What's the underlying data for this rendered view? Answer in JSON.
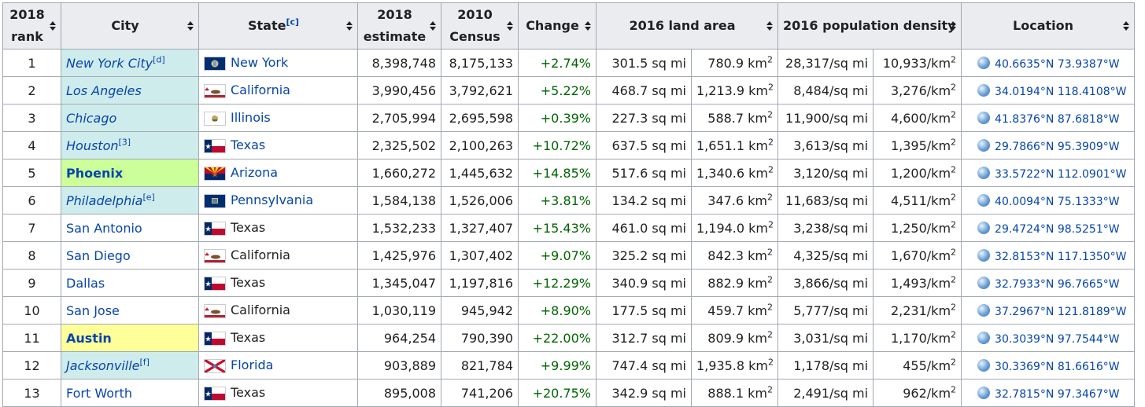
{
  "headers": {
    "rank_line1": "2018",
    "rank_line2": "rank",
    "city": "City",
    "state": "State",
    "state_note": "[c]",
    "estimate_line1": "2018",
    "estimate_line2": "estimate",
    "census_line1": "2010",
    "census_line2": "Census",
    "change": "Change",
    "land_area": "2016 land area",
    "density": "2016 population density",
    "location": "Location"
  },
  "rows": [
    {
      "rank": "1",
      "city": "New York City",
      "city_note": "[d]",
      "state": "New York",
      "flag": "new-york",
      "est": "8,398,748",
      "census": "8,175,133",
      "change": "+2.74%",
      "land_mi": "301.5 sq mi",
      "land_km": "780.9 km",
      "dens_mi": "28,317/sq mi",
      "dens_km": "10,933/km",
      "loc": "40.6635°N 73.9387°W"
    },
    {
      "rank": "2",
      "city": "Los Angeles",
      "city_note": "",
      "state": "California",
      "flag": "california",
      "est": "3,990,456",
      "census": "3,792,621",
      "change": "+5.22%",
      "land_mi": "468.7 sq mi",
      "land_km": "1,213.9 km",
      "dens_mi": "8,484/sq mi",
      "dens_km": "3,276/km",
      "loc": "34.0194°N 118.4108°W"
    },
    {
      "rank": "3",
      "city": "Chicago",
      "city_note": "",
      "state": "Illinois",
      "flag": "illinois",
      "est": "2,705,994",
      "census": "2,695,598",
      "change": "+0.39%",
      "land_mi": "227.3 sq mi",
      "land_km": "588.7 km",
      "dens_mi": "11,900/sq mi",
      "dens_km": "4,600/km",
      "loc": "41.8376°N 87.6818°W"
    },
    {
      "rank": "4",
      "city": "Houston",
      "city_note": "[3]",
      "state": "Texas",
      "flag": "texas",
      "est": "2,325,502",
      "census": "2,100,263",
      "change": "+10.72%",
      "land_mi": "637.5 sq mi",
      "land_km": "1,651.1 km",
      "dens_mi": "3,613/sq mi",
      "dens_km": "1,395/km",
      "loc": "29.7866°N 95.3909°W"
    },
    {
      "rank": "5",
      "city": "Phoenix",
      "city_note": "",
      "state": "Arizona",
      "flag": "arizona",
      "est": "1,660,272",
      "census": "1,445,632",
      "change": "+14.85%",
      "land_mi": "517.6 sq mi",
      "land_km": "1,340.6 km",
      "dens_mi": "3,120/sq mi",
      "dens_km": "1,200/km",
      "loc": "33.5722°N 112.0901°W"
    },
    {
      "rank": "6",
      "city": "Philadelphia",
      "city_note": "[e]",
      "state": "Pennsylvania",
      "flag": "pennsylvania",
      "est": "1,584,138",
      "census": "1,526,006",
      "change": "+3.81%",
      "land_mi": "134.2 sq mi",
      "land_km": "347.6 km",
      "dens_mi": "11,683/sq mi",
      "dens_km": "4,511/km",
      "loc": "40.0094°N 75.1333°W"
    },
    {
      "rank": "7",
      "city": "San Antonio",
      "city_note": "",
      "state": "Texas",
      "flag": "texas",
      "est": "1,532,233",
      "census": "1,327,407",
      "change": "+15.43%",
      "land_mi": "461.0 sq mi",
      "land_km": "1,194.0 km",
      "dens_mi": "3,238/sq mi",
      "dens_km": "1,250/km",
      "loc": "29.4724°N 98.5251°W"
    },
    {
      "rank": "8",
      "city": "San Diego",
      "city_note": "",
      "state": "California",
      "flag": "california",
      "est": "1,425,976",
      "census": "1,307,402",
      "change": "+9.07%",
      "land_mi": "325.2 sq mi",
      "land_km": "842.3 km",
      "dens_mi": "4,325/sq mi",
      "dens_km": "1,670/km",
      "loc": "32.8153°N 117.1350°W"
    },
    {
      "rank": "9",
      "city": "Dallas",
      "city_note": "",
      "state": "Texas",
      "flag": "texas",
      "est": "1,345,047",
      "census": "1,197,816",
      "change": "+12.29%",
      "land_mi": "340.9 sq mi",
      "land_km": "882.9 km",
      "dens_mi": "3,866/sq mi",
      "dens_km": "1,493/km",
      "loc": "32.7933°N 96.7665°W"
    },
    {
      "rank": "10",
      "city": "San Jose",
      "city_note": "",
      "state": "California",
      "flag": "california",
      "est": "1,030,119",
      "census": "945,942",
      "change": "+8.90%",
      "land_mi": "177.5 sq mi",
      "land_km": "459.7 km",
      "dens_mi": "5,777/sq mi",
      "dens_km": "2,231/km",
      "loc": "37.2967°N 121.8189°W"
    },
    {
      "rank": "11",
      "city": "Austin",
      "city_note": "",
      "state": "Texas",
      "flag": "texas",
      "est": "964,254",
      "census": "790,390",
      "change": "+22.00%",
      "land_mi": "312.7 sq mi",
      "land_km": "809.9 km",
      "dens_mi": "3,031/sq mi",
      "dens_km": "1,170/km",
      "loc": "30.3039°N 97.7544°W"
    },
    {
      "rank": "12",
      "city": "Jacksonville",
      "city_note": "[f]",
      "state": "Florida",
      "flag": "florida",
      "est": "903,889",
      "census": "821,784",
      "change": "+9.99%",
      "land_mi": "747.4 sq mi",
      "land_km": "1,935.8 km",
      "dens_mi": "1,178/sq mi",
      "dens_km": "455/km",
      "loc": "30.3369°N 81.6616°W"
    },
    {
      "rank": "13",
      "city": "Fort Worth",
      "city_note": "",
      "state": "Texas",
      "flag": "texas",
      "est": "895,008",
      "census": "741,206",
      "change": "+20.75%",
      "land_mi": "342.9 sq mi",
      "land_km": "888.1 km",
      "dens_mi": "2,491/sq mi",
      "dens_km": "962/km",
      "loc": "32.7815°N 97.3467°W"
    }
  ],
  "row_styles": [
    {
      "city": "cyan-italic",
      "state_link": true
    },
    {
      "city": "cyan-italic",
      "state_link": true
    },
    {
      "city": "cyan-italic",
      "state_link": true
    },
    {
      "city": "cyan-italic",
      "state_link": true
    },
    {
      "city": "green-bold",
      "state_link": true
    },
    {
      "city": "cyan-italic",
      "state_link": true
    },
    {
      "city": "plain",
      "state_link": false
    },
    {
      "city": "plain",
      "state_link": false
    },
    {
      "city": "plain",
      "state_link": false
    },
    {
      "city": "plain",
      "state_link": false
    },
    {
      "city": "yellow-bold",
      "state_link": false
    },
    {
      "city": "cyan-italic",
      "state_link": true
    },
    {
      "city": "plain",
      "state_link": false
    }
  ],
  "superscript_2": "2",
  "colors": {
    "link": "#0645ad",
    "header_bg": "#eaecf0",
    "border": "#a2a9b1",
    "positive_change": "#006400",
    "cyan_highlight": "#cfecec",
    "green_highlight": "#ccff99",
    "yellow_highlight": "#ffff99",
    "coord_link": "#3366cc"
  }
}
